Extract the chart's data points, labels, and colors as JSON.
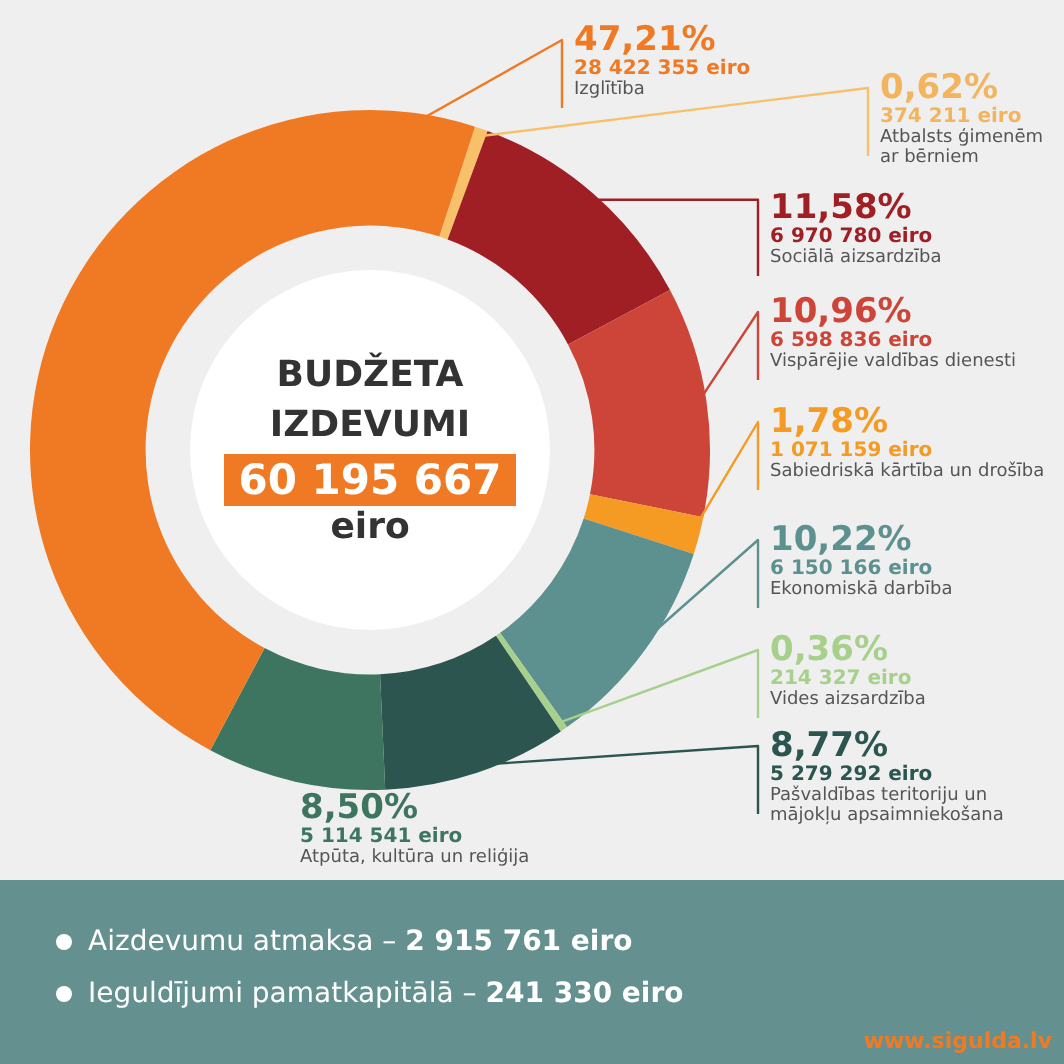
{
  "chart_data": {
    "type": "donut",
    "title": "BUDŽETA IZDEVUMI",
    "subtitle": "60 195 667 eiro",
    "categories": [
      "Atbalsts ģimenēm ar bērniem",
      "Sociālā aizsardzība",
      "Vispārējie valdības dienesti",
      "Sabiedriskā kārtība un drošība",
      "Ekonomiskā darbība",
      "Vides aizsardzība",
      "Pašvaldības teritoriju un mājokļu apsaimniekošana",
      "Atpūta, kultūra un reliģija",
      "Izglītība"
    ],
    "values": [
      374211,
      6970780,
      6598836,
      1071159,
      6150166,
      214327,
      5279292,
      5114541,
      28422355
    ],
    "value_labels": [
      "0,62%\n374 211 eiro",
      "11,58%\n6 970 780 eiro",
      "10,96%\n6 598 836 eiro",
      "1,78%\n1 071 159 eiro",
      "10,22%\n6 150 166 eiro",
      "0,36%\n214 327 eiro",
      "8,77%\n5 279 292 eiro",
      "8,50%\n5 114 541 eiro",
      "47,21%\n28 422 355 eiro"
    ],
    "colors": [
      "#f9c06a",
      "#a01f24",
      "#cc4538",
      "#f59a23",
      "#5c9190",
      "#a8d08d",
      "#2d5550",
      "#3d7560",
      "#f07a24"
    ],
    "legend": false,
    "annotations": [
      "Aizdevumu atmaksa – 2 915 761 eiro",
      "Ieguldījumi pamatkapitālā – 241 330 eiro",
      "www.sigulda.lv"
    ]
  }
}
